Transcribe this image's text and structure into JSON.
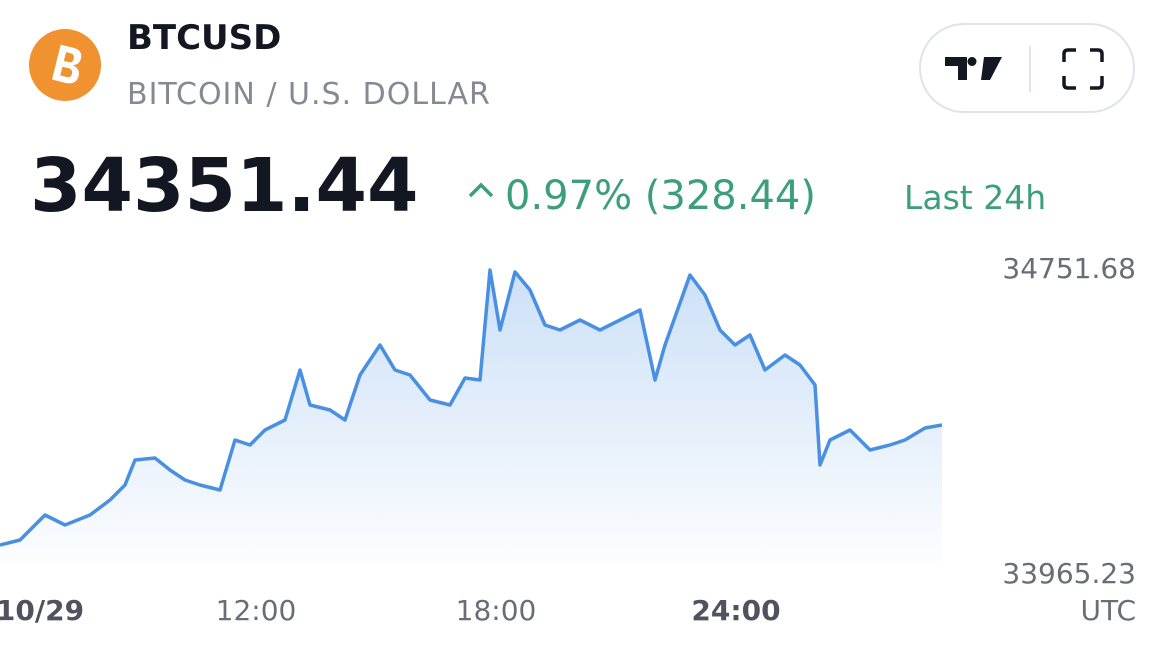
{
  "header": {
    "symbol": "BTCUSD",
    "name": "BITCOIN / U.S. DOLLAR",
    "price": "34351.44",
    "change": "0.97% (328.44)",
    "period": "Last 24h"
  },
  "chart_data": {
    "type": "line",
    "color": "#4a90e2",
    "x": [
      5.6,
      6.1,
      6.725,
      7.225,
      7.85,
      8.35,
      8.725,
      8.975,
      9.475,
      9.85,
      10.225,
      10.6,
      11.1,
      11.475,
      11.85,
      12.225,
      12.725,
      13.1,
      13.35,
      13.85,
      14.225,
      14.6,
      15.1,
      15.475,
      15.85,
      16.35,
      16.85,
      17.225,
      17.6,
      17.85,
      18.1,
      18.475,
      18.85,
      19.225,
      19.6,
      20.1,
      20.6,
      21.1,
      21.6,
      21.975,
      22.225,
      22.85,
      23.225,
      23.6,
      23.975,
      24.35,
      24.725,
      25.225,
      25.6,
      25.975,
      26.1,
      26.35,
      26.85,
      27.35,
      27.85,
      28.225,
      28.725,
      29.15
    ],
    "values": [
      34037.5,
      34050.3,
      34114.8,
      34089.0,
      34114.8,
      34153.5,
      34192.2,
      34256.6,
      34261.8,
      34230.8,
      34205.1,
      34192.2,
      34179.3,
      34308.2,
      34295.3,
      34334.0,
      34359.8,
      34488.7,
      34398.4,
      34385.6,
      34359.8,
      34475.8,
      34553.2,
      34488.7,
      34475.8,
      34411.3,
      34398.4,
      34468.1,
      34462.9,
      34746.5,
      34591.8,
      34741.4,
      34695.0,
      34604.7,
      34591.8,
      34617.6,
      34591.8,
      34617.6,
      34643.4,
      34462.9,
      34553.2,
      34733.7,
      34682.1,
      34591.8,
      34553.2,
      34578.9,
      34488.7,
      34527.4,
      34501.6,
      34450.0,
      34243.7,
      34308.2,
      34334.0,
      34282.4,
      34295.3,
      34308.2,
      34339.1,
      34346.9
    ],
    "xlim": [
      5.6,
      29.15
    ],
    "xticks": [
      {
        "value": 6.6,
        "label": "10/29"
      },
      {
        "value": 12,
        "label": "12:00"
      },
      {
        "value": 18,
        "label": "18:00"
      },
      {
        "value": 24,
        "label": "24:00"
      }
    ],
    "ylim": [
      33965.23,
      34751.68
    ],
    "yticks": [
      33965.23,
      34751.68
    ],
    "timezone": "UTC"
  }
}
